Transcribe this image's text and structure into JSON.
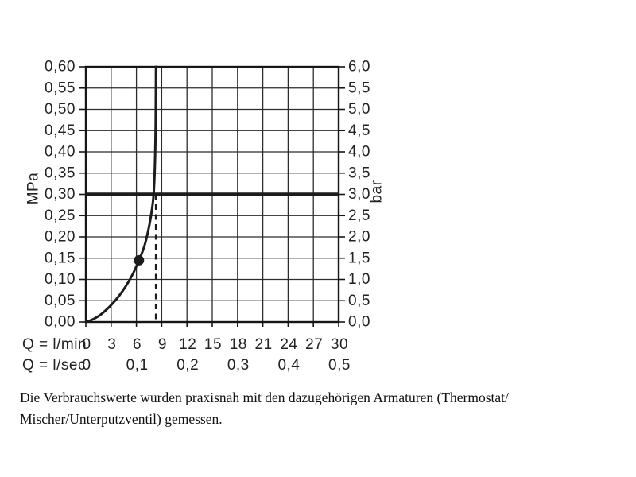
{
  "note": {
    "line1": "Die Verbrauchswerte wurden praxisnah mit den dazugehörigen Armaturen (Thermostat/",
    "line2": "Mischer/Unterputzventil) gemessen."
  },
  "chart_data": {
    "type": "line",
    "x_axis": {
      "min": 0,
      "max": 30,
      "grid_step": 3
    },
    "row_lmin": {
      "label": "Q = l/min",
      "tick_values": [
        0,
        3,
        6,
        9,
        12,
        15,
        18,
        21,
        24,
        27,
        30
      ]
    },
    "row_lsec": {
      "label": "Q = l/sec",
      "ticks": [
        {
          "label": "0",
          "at": 0
        },
        {
          "label": "0,1",
          "at": 6
        },
        {
          "label": "0,2",
          "at": 12
        },
        {
          "label": "0,3",
          "at": 18
        },
        {
          "label": "0,4",
          "at": 24
        },
        {
          "label": "0,5",
          "at": 30
        }
      ]
    },
    "y_axis_left": {
      "label": "MPa",
      "min": 0,
      "max": 0.6,
      "step": 0.05,
      "decimals": 2
    },
    "y_axis_right": {
      "label": "bar",
      "min": 0,
      "max": 6,
      "step": 0.5,
      "decimals": 1
    },
    "series": [
      {
        "name": "flow-curve",
        "points": [
          [
            0,
            0
          ],
          [
            0.8,
            0.006
          ],
          [
            1.6,
            0.015
          ],
          [
            2.4,
            0.028
          ],
          [
            3.2,
            0.044
          ],
          [
            4.0,
            0.063
          ],
          [
            4.8,
            0.086
          ],
          [
            5.6,
            0.114
          ],
          [
            6.3,
            0.145
          ],
          [
            7.0,
            0.182
          ],
          [
            7.6,
            0.235
          ],
          [
            8.0,
            0.29
          ],
          [
            8.18,
            0.36
          ],
          [
            8.28,
            0.46
          ],
          [
            8.32,
            0.6
          ]
        ]
      }
    ],
    "reference_pressure_line_mpa": 0.3,
    "dashed_flow_line": {
      "x_lmin": 8.3,
      "from_mpa": 0,
      "to_mpa": 0.3
    },
    "operating_point": {
      "x_lmin": 6.3,
      "y_mpa": 0.145
    },
    "colors": {
      "ink": "#1c1c1c",
      "grid": "#2c2c2c"
    }
  }
}
